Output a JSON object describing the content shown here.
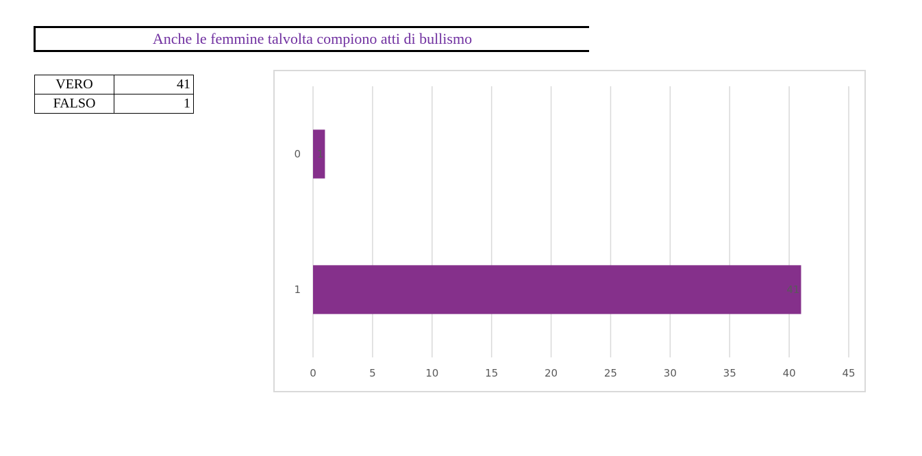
{
  "title": "Anche le femmine talvolta compiono atti di bullismo",
  "summary_table": [
    {
      "label": "VERO",
      "value": "41"
    },
    {
      "label": "FALSO",
      "value": "1"
    }
  ],
  "colors": {
    "bar": "#85308b",
    "grid": "#d9d9d9",
    "title": "#7030a0"
  },
  "chart_data": {
    "type": "bar",
    "orientation": "horizontal",
    "categories": [
      "0",
      "1"
    ],
    "values": [
      1,
      41
    ],
    "data_labels": [
      "1",
      "41"
    ],
    "xlim": [
      0,
      45
    ],
    "x_ticks": [
      "0",
      "5",
      "10",
      "15",
      "20",
      "25",
      "30",
      "35",
      "40",
      "45"
    ],
    "grid": true,
    "legend": "none"
  }
}
